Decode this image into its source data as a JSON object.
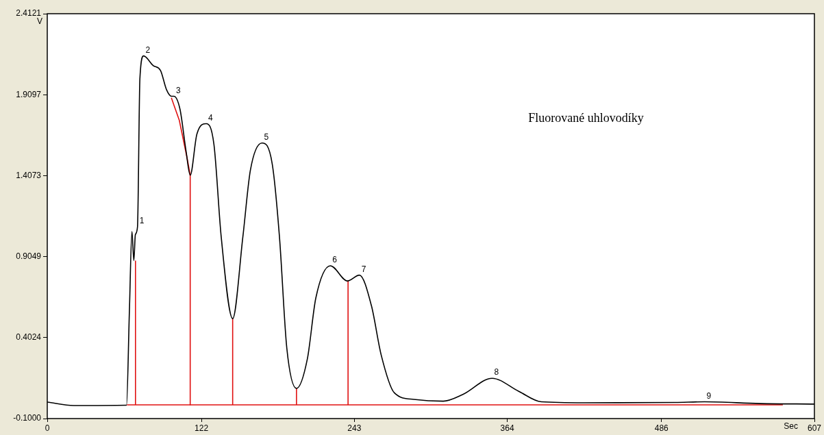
{
  "chart_data": {
    "type": "line",
    "xlabel": "Sec",
    "ylabel": "V",
    "xlim": [
      0,
      607
    ],
    "xticks": [
      0,
      122,
      243,
      364,
      486,
      607
    ],
    "ylim": [
      -0.1,
      2.4121
    ],
    "yticks": [
      {
        "value": -0.1,
        "label": "-0.1000"
      },
      0.4024,
      0.9049,
      1.4073,
      1.9097,
      2.4121
    ],
    "grid": false,
    "legend": false,
    "marker": "none",
    "line_style": "solid",
    "series": [
      {
        "color": "#000000",
        "x": [
          0,
          21,
          62.7,
          65,
          67,
          68.5,
          69.7,
          71.4,
          73.3,
          76.2,
          83.9,
          89.6,
          94.4,
          98.3,
          100.2,
          105,
          109.8,
          113.1,
          118.4,
          125.7,
          131.9,
          137.6,
          146.7,
          154.8,
          160.7,
          169.9,
          178,
          183.7,
          189.5,
          197.2,
          205.8,
          212.5,
          224,
          237.5,
          247,
          256.5,
          264.2,
          274.6,
          290,
          313.3,
          328.9,
          352,
          372.8,
          390.9,
          424.6,
          496.8,
          520,
          564,
          607
        ],
        "values": [
          0.002,
          -0.019,
          -0.017,
          0.57,
          1.06,
          0.88,
          1.04,
          1.09,
          2.01,
          2.15,
          2.09,
          2.06,
          1.94,
          1.9,
          1.9,
          1.82,
          1.56,
          1.41,
          1.665,
          1.73,
          1.6,
          1.03,
          0.52,
          1.03,
          1.44,
          1.61,
          1.48,
          1.03,
          0.34,
          0.087,
          0.27,
          0.648,
          0.848,
          0.754,
          0.79,
          0.6,
          0.295,
          0.06,
          0.019,
          0.008,
          0.05,
          0.15,
          0.07,
          0.004,
          -0.002,
          0,
          0.004,
          -0.007,
          -0.01
        ]
      },
      {
        "color": "#e01010",
        "x": [
          63,
          582
        ],
        "values": [
          -0.015,
          -0.015
        ]
      },
      {
        "color": "#e01010",
        "x": [
          69.8,
          69.8
        ],
        "values": [
          -0.015,
          0.88
        ]
      },
      {
        "color": "#e01010",
        "x": [
          146.7,
          146.7
        ],
        "values": [
          -0.015,
          0.52
        ]
      },
      {
        "color": "#e01010",
        "x": [
          197.2,
          197.2
        ],
        "values": [
          -0.015,
          0.087
        ]
      },
      {
        "color": "#e01010",
        "x": [
          238,
          238
        ],
        "values": [
          -0.015,
          0.754
        ]
      },
      {
        "color": "#e01010",
        "x": [
          98.2,
          104.5,
          110.8,
          113.1,
          113.1
        ],
        "values": [
          1.89,
          1.75,
          1.51,
          1.41,
          -0.015
        ]
      }
    ],
    "annotations": [
      "Fluorované uhlovodíky",
      {
        "text": "1",
        "x": 71.4,
        "y": 1.09
      },
      {
        "text": "2",
        "x": 76.2,
        "y": 2.15
      },
      {
        "text": "3",
        "x": 100.2,
        "y": 1.9
      },
      {
        "text": "4",
        "x": 125.7,
        "y": 1.73
      },
      {
        "text": "5",
        "x": 169.9,
        "y": 1.61
      },
      {
        "text": "6",
        "x": 224,
        "y": 0.848
      },
      {
        "text": "7",
        "x": 247,
        "y": 0.79
      },
      {
        "text": "8",
        "x": 352,
        "y": 0.15
      },
      {
        "text": "9",
        "x": 520,
        "y": 0.004
      }
    ]
  }
}
